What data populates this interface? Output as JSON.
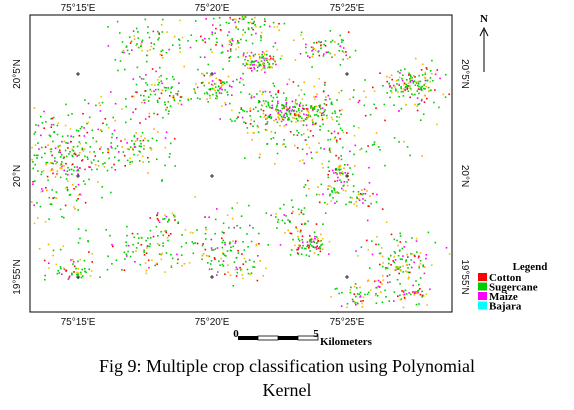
{
  "map": {
    "top_labels": [
      "75°15'E",
      "75°20'E",
      "75°25'E"
    ],
    "bottom_labels": [
      "75°15'E",
      "75°20'E",
      "75°25'E"
    ],
    "left_labels": [
      "20°5'N",
      "20°N",
      "19°55'N"
    ],
    "right_labels": [
      "20°5'N",
      "20°N",
      "19°55'N"
    ],
    "north": "N",
    "legend": {
      "title": "Legend",
      "items": [
        {
          "label": "Cotton",
          "color": "#ff0000"
        },
        {
          "label": "Sugercane",
          "color": "#00cc00"
        },
        {
          "label": "Maize",
          "color": "#ff00ff"
        },
        {
          "label": "Bajara",
          "color": "#00ffff"
        }
      ]
    },
    "scale": {
      "start": "0",
      "end": "5",
      "unit": "Kilometers"
    }
  },
  "caption": [
    "Fig 9: Multiple crop classification using Polynomial",
    "Kernel"
  ]
}
